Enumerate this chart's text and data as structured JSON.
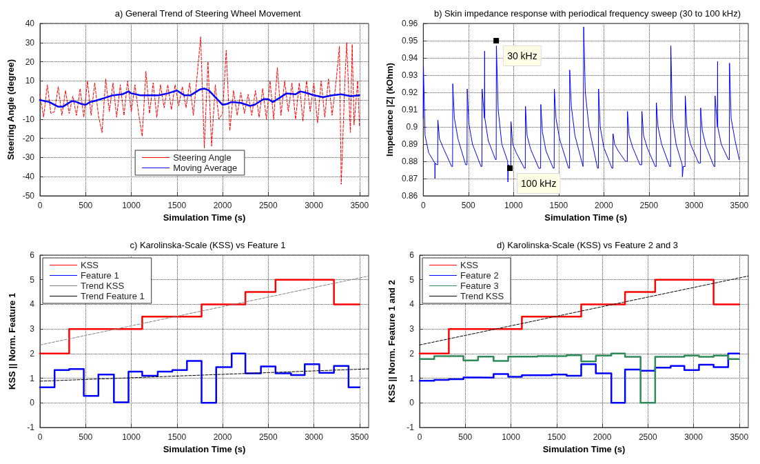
{
  "chart_data": [
    {
      "type": "line",
      "title": "a) General Trend of Steering Wheel Movement",
      "xlabel": "Simulation Time (s)",
      "ylabel": "Steering Angle (degree)",
      "xlim": [
        0,
        3600
      ],
      "xticks": [
        0,
        500,
        1000,
        1500,
        2000,
        2500,
        3000,
        3500
      ],
      "ylim": [
        -50,
        40
      ],
      "yticks": [
        -50,
        -40,
        -30,
        -20,
        -10,
        0,
        10,
        20,
        30,
        40
      ],
      "grid": true,
      "legend": "bottom",
      "series": [
        {
          "name": "Steering Angle",
          "color": "#ff0000",
          "line_style": "dashed",
          "x": [
            0,
            40,
            80,
            120,
            160,
            200,
            240,
            280,
            320,
            360,
            400,
            440,
            480,
            520,
            560,
            600,
            640,
            680,
            720,
            760,
            800,
            840,
            880,
            920,
            960,
            1000,
            1040,
            1080,
            1120,
            1160,
            1200,
            1240,
            1280,
            1320,
            1360,
            1400,
            1440,
            1480,
            1520,
            1560,
            1600,
            1640,
            1680,
            1720,
            1760,
            1800,
            1840,
            1880,
            1920,
            1960,
            2000,
            2040,
            2080,
            2120,
            2160,
            2200,
            2240,
            2280,
            2320,
            2360,
            2400,
            2440,
            2480,
            2520,
            2560,
            2600,
            2640,
            2680,
            2720,
            2760,
            2800,
            2840,
            2880,
            2920,
            2960,
            3000,
            3040,
            3080,
            3120,
            3160,
            3200,
            3240,
            3280,
            3300,
            3340,
            3360,
            3400,
            3420,
            3440,
            3480,
            3500
          ],
          "values": [
            3,
            -9,
            8,
            -7,
            -6,
            7,
            -8,
            5,
            -7,
            2,
            -8,
            6,
            -9,
            10,
            -8,
            9,
            -8,
            -17,
            11,
            -6,
            9,
            -9,
            8,
            -8,
            10,
            -6,
            8,
            -7,
            -19,
            15,
            -7,
            9,
            -9,
            8,
            -4,
            8,
            -5,
            8,
            -3,
            7,
            -4,
            9,
            -8,
            12,
            33,
            -25,
            20,
            -24,
            8,
            -10,
            -7,
            26,
            -16,
            5,
            -8,
            4,
            -7,
            3,
            -8,
            5,
            -9,
            6,
            -10,
            10,
            -10,
            17,
            -8,
            10,
            -6,
            9,
            -10,
            9,
            -11,
            10,
            -6,
            9,
            -12,
            10,
            -9,
            11,
            -8,
            8,
            28,
            -44,
            10,
            30,
            -17,
            29,
            -13,
            10,
            -14
          ]
        },
        {
          "name": "Moving Average",
          "color": "#0000ff",
          "x": [
            0,
            50,
            100,
            200,
            250,
            300,
            350,
            400,
            450,
            500,
            550,
            600,
            700,
            800,
            900,
            970,
            1000,
            1100,
            1200,
            1300,
            1400,
            1500,
            1580,
            1650,
            1750,
            1800,
            1850,
            1950,
            2000,
            2050,
            2100,
            2200,
            2300,
            2350,
            2450,
            2500,
            2550,
            2620,
            2700,
            2800,
            2850,
            2900,
            3000,
            3050,
            3100,
            3200,
            3300,
            3400,
            3500
          ],
          "values": [
            0,
            -0.5,
            -1,
            -3.5,
            -3.5,
            -2,
            -0.5,
            -1,
            -2,
            -2.5,
            -1,
            -0.5,
            1,
            2.5,
            3,
            4.5,
            3.5,
            2.5,
            2.5,
            2.5,
            3.5,
            5,
            2.5,
            2.5,
            5.5,
            6,
            5,
            0,
            -2.5,
            -2,
            -1,
            -1.5,
            -3,
            -2.5,
            0.5,
            0.5,
            -1,
            1,
            3.5,
            3,
            4.5,
            4,
            2.5,
            2,
            1.5,
            2.5,
            3,
            2,
            2.5
          ]
        }
      ]
    },
    {
      "type": "line",
      "title": "b) Skin impedance response with periodical frequency sweep (30 to 100 kHz)",
      "xlabel": "Simulation Time (s)",
      "ylabel": "Impedance |Z| (kOhm)",
      "xlim": [
        0,
        3600
      ],
      "xticks": [
        0,
        500,
        1000,
        1500,
        2000,
        2500,
        3000,
        3500
      ],
      "ylim": [
        0.86,
        0.96
      ],
      "yticks": [
        0.86,
        0.87,
        0.88,
        0.89,
        0.9,
        0.91,
        0.92,
        0.93,
        0.94,
        0.95,
        0.96
      ],
      "grid": true,
      "legend": false,
      "annotations": [
        {
          "text": "30 kHz",
          "x": 808,
          "y": 0.95
        },
        {
          "text": "100 kHz",
          "x": 960,
          "y": 0.876
        }
      ],
      "series": [
        {
          "color": "#0000ff",
          "x": [
            0,
            2,
            20,
            60,
            128,
            130,
            132,
            150,
            160,
            162,
            180,
            220,
            315,
            325,
            327,
            345,
            385,
            470,
            485,
            487,
            505,
            545,
            640,
            650,
            652,
            678,
            680,
            682,
            720,
            800,
            808,
            810,
            830,
            870,
            935,
            938,
            941,
            970,
            972,
            990,
            1030,
            1120,
            1130,
            1132,
            1150,
            1190,
            1280,
            1300,
            1302,
            1320,
            1360,
            1440,
            1450,
            1452,
            1470,
            1510,
            1610,
            1620,
            1622,
            1640,
            1680,
            1770,
            1775,
            1777,
            1795,
            1835,
            1930,
            1940,
            1942,
            1960,
            2000,
            2090,
            2100,
            2102,
            2120,
            2160,
            2240,
            2260,
            2262,
            2280,
            2320,
            2400,
            2420,
            2422,
            2440,
            2480,
            2570,
            2580,
            2582,
            2600,
            2640,
            2730,
            2740,
            2742,
            2760,
            2800,
            2868,
            2870,
            2880,
            2900,
            2902,
            2920,
            2960,
            3050,
            3070,
            3072,
            3090,
            3130,
            3220,
            3230,
            3232,
            3258,
            3260,
            3262,
            3300,
            3380,
            3390,
            3392,
            3410,
            3450,
            3500
          ],
          "values": [
            0.905,
            0.935,
            0.895,
            0.885,
            0.879,
            0.87,
            0.879,
            0.878,
            0.878,
            0.904,
            0.893,
            0.888,
            0.877,
            0.877,
            0.925,
            0.905,
            0.893,
            0.878,
            0.878,
            0.922,
            0.902,
            0.89,
            0.877,
            0.877,
            0.922,
            0.905,
            0.944,
            0.905,
            0.892,
            0.881,
            0.881,
            0.947,
            0.91,
            0.89,
            0.88,
            0.868,
            0.878,
            0.877,
            0.903,
            0.89,
            0.885,
            0.876,
            0.876,
            0.912,
            0.895,
            0.887,
            0.876,
            0.876,
            0.913,
            0.897,
            0.886,
            0.876,
            0.876,
            0.922,
            0.905,
            0.893,
            0.876,
            0.876,
            0.933,
            0.912,
            0.895,
            0.877,
            0.877,
            0.958,
            0.92,
            0.9,
            0.876,
            0.876,
            0.922,
            0.9,
            0.888,
            0.876,
            0.876,
            0.896,
            0.89,
            0.886,
            0.88,
            0.88,
            0.909,
            0.895,
            0.888,
            0.878,
            0.878,
            0.909,
            0.895,
            0.888,
            0.877,
            0.877,
            0.914,
            0.9,
            0.89,
            0.877,
            0.877,
            0.947,
            0.905,
            0.89,
            0.878,
            0.871,
            0.877,
            0.877,
            0.918,
            0.9,
            0.89,
            0.879,
            0.879,
            0.911,
            0.898,
            0.889,
            0.877,
            0.877,
            0.918,
            0.9,
            0.938,
            0.9,
            0.89,
            0.881,
            0.881,
            0.937,
            0.905,
            0.893,
            0.881
          ]
        }
      ]
    },
    {
      "type": "step",
      "title": "c) Karolinska-Scale (KSS) vs Feature 1",
      "xlabel": "Simulation Time (s)",
      "ylabel": "KSS || Norm. Feature 1",
      "xlim": [
        0,
        3600
      ],
      "xticks": [
        0,
        500,
        1000,
        1500,
        2000,
        2500,
        3000,
        3500
      ],
      "ylim": [
        -1,
        6
      ],
      "yticks": [
        -1,
        0,
        1,
        2,
        3,
        4,
        5,
        6
      ],
      "grid": true,
      "legend": "top left",
      "series": [
        {
          "name": "KSS",
          "color": "#ff0000",
          "x": [
            0,
            320,
            1120,
            1770,
            2250,
            2580,
            3220,
            3500
          ],
          "values": [
            2,
            3,
            3.5,
            4,
            4.5,
            5,
            4,
            4
          ]
        },
        {
          "name": "Feature 1",
          "color": "#0000ff",
          "x": [
            0,
            160,
            320,
            480,
            640,
            810,
            970,
            1120,
            1290,
            1450,
            1610,
            1770,
            1930,
            2100,
            2250,
            2420,
            2580,
            2750,
            2900,
            3060,
            3220,
            3380,
            3500
          ],
          "values": [
            0.63,
            1.33,
            1.37,
            0.28,
            1.15,
            0.02,
            1.27,
            1.1,
            1.27,
            1.33,
            1.7,
            0,
            1.45,
            2,
            1.2,
            1.48,
            1.2,
            1.13,
            1.57,
            1.22,
            1.5,
            0.63,
            0.63
          ]
        },
        {
          "name": "Trend KSS",
          "type": "line",
          "line_style": "dashed",
          "color": "#808080",
          "x": [
            0,
            3600
          ],
          "values": [
            2.35,
            5.15
          ]
        },
        {
          "name": "Trend Feature 1",
          "type": "line",
          "line_style": "dashed",
          "color": "#000000",
          "x": [
            0,
            3600
          ],
          "values": [
            0.88,
            1.38
          ]
        }
      ]
    },
    {
      "type": "step",
      "title": "d) Karolinska-Scale (KSS) vs Feature 2 and 3",
      "xlabel": "Simulation Time (s)",
      "ylabel": "KSS || Norm. Feature 1 and 2",
      "xlim": [
        0,
        3600
      ],
      "xticks": [
        0,
        500,
        1000,
        1500,
        2000,
        2500,
        3000,
        3500
      ],
      "ylim": [
        -1,
        6
      ],
      "yticks": [
        -1,
        0,
        1,
        2,
        3,
        4,
        5,
        6
      ],
      "grid": true,
      "legend": "top left",
      "series": [
        {
          "name": "KSS",
          "color": "#ff0000",
          "x": [
            0,
            320,
            1120,
            1770,
            2250,
            2580,
            3220,
            3500
          ],
          "values": [
            2,
            3,
            3.5,
            4,
            4.5,
            5,
            4,
            4
          ]
        },
        {
          "name": "Feature 2",
          "color": "#0000ff",
          "x": [
            0,
            160,
            320,
            480,
            640,
            810,
            970,
            1120,
            1450,
            1610,
            1770,
            1930,
            2100,
            2250,
            2420,
            2580,
            2750,
            2900,
            3060,
            3220,
            3380,
            3500
          ],
          "values": [
            0.9,
            0.93,
            0.96,
            1.03,
            1.02,
            1.17,
            1.06,
            1.12,
            1.15,
            1.1,
            1.57,
            1.2,
            0,
            1.35,
            1.3,
            1.43,
            1.5,
            1.33,
            1.55,
            1.45,
            2,
            2
          ]
        },
        {
          "name": "Feature 3",
          "color": "#2e8b57",
          "x": [
            0,
            160,
            480,
            640,
            810,
            970,
            1290,
            1610,
            1770,
            1930,
            2100,
            2250,
            2420,
            2580,
            2900,
            3060,
            3220,
            3380,
            3500
          ],
          "values": [
            1.78,
            1.9,
            1.72,
            1.88,
            1.7,
            1.88,
            1.9,
            1.93,
            1.68,
            1.92,
            2,
            1.87,
            0,
            1.87,
            1.92,
            1.87,
            1.92,
            1.78,
            1.78
          ]
        },
        {
          "name": "Trend KSS",
          "type": "line",
          "line_style": "dashed",
          "color": "#000000",
          "x": [
            0,
            3600
          ],
          "values": [
            2.35,
            5.15
          ]
        }
      ]
    }
  ]
}
